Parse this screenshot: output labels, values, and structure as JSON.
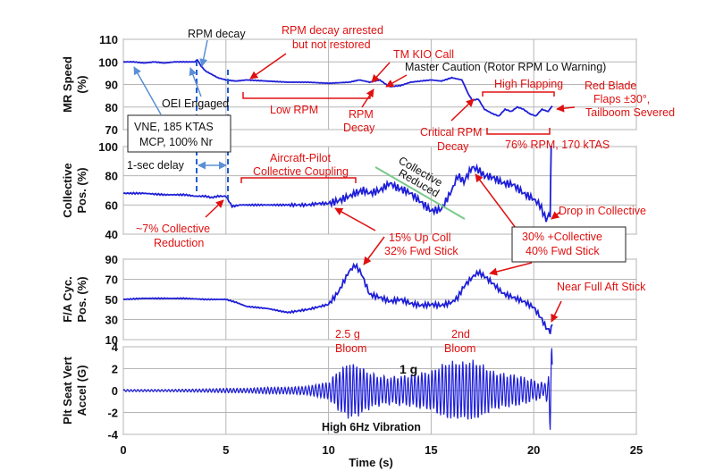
{
  "chart_data": {
    "type": "line",
    "xlabel": "Time (s)",
    "xlim": [
      0,
      25
    ],
    "xticks": [
      0,
      5,
      10,
      15,
      20,
      25
    ],
    "series_color": "#1f1fd8",
    "annotation_color": "#e01010",
    "subplots": [
      {
        "id": "mr",
        "ylabel": [
          "MR Speed",
          "(%)"
        ],
        "ylim": [
          70,
          110
        ],
        "yticks": [
          70,
          80,
          90,
          100,
          110
        ],
        "x": [
          0,
          0.5,
          1,
          1.5,
          2,
          2.5,
          3,
          3.5,
          3.6,
          3.8,
          4,
          4.2,
          4.4,
          4.6,
          5,
          5.5,
          6,
          7,
          8,
          9,
          10,
          11,
          11.5,
          12,
          12.5,
          12.8,
          13,
          13.5,
          14,
          15,
          15.5,
          16,
          16.5,
          16.8,
          17,
          17.3,
          17.6,
          18,
          18.3,
          18.6,
          18.9,
          19.2,
          19.5,
          19.8,
          20.1,
          20.4,
          20.7,
          20.9
        ],
        "y": [
          100,
          100,
          99.5,
          100,
          99.5,
          100,
          100,
          100,
          101,
          98,
          96,
          95,
          94,
          93,
          92,
          91.5,
          92,
          91.5,
          91,
          91,
          90.5,
          91,
          92,
          91,
          92,
          90,
          89,
          89.5,
          91,
          92,
          91.5,
          93,
          92,
          86,
          83,
          83.5,
          79,
          77,
          76,
          79,
          78,
          80,
          79,
          77,
          76,
          79,
          78,
          80.5
        ]
      },
      {
        "id": "coll",
        "ylabel": [
          "Collective",
          "Pos. (%)"
        ],
        "ylim": [
          40,
          100
        ],
        "yticks": [
          40,
          60,
          80,
          100
        ],
        "x": [
          0,
          1,
          2,
          3,
          3.5,
          4,
          4.3,
          4.6,
          5,
          5.3,
          5.7,
          6,
          7,
          8,
          9,
          9.5,
          10,
          10.5,
          11,
          11.3,
          11.7,
          12,
          12.5,
          13,
          13.3,
          13.7,
          14,
          14.5,
          15,
          15.5,
          16,
          16.3,
          16.6,
          17,
          17.3,
          17.6,
          18,
          18.5,
          19,
          19.5,
          20,
          20.3,
          20.6,
          20.8,
          20.85,
          20.9
        ],
        "y": [
          68,
          68,
          67,
          67,
          66,
          66,
          65,
          66,
          66,
          59,
          60,
          60,
          60,
          60,
          60,
          61,
          61,
          63,
          66,
          68,
          70,
          68,
          70,
          75,
          72,
          70,
          68,
          62,
          56,
          57,
          70,
          80,
          76,
          86,
          84,
          80,
          79,
          75,
          74,
          68,
          64,
          60,
          50,
          54,
          100,
          100
        ]
      },
      {
        "id": "cyc",
        "ylabel": [
          "F/A Cyc.",
          "Pos. (%)"
        ],
        "ylim": [
          10,
          90
        ],
        "yticks": [
          10,
          30,
          50,
          70,
          90
        ],
        "x": [
          0,
          1,
          2,
          3,
          4,
          5,
          5.5,
          6,
          7,
          7.5,
          8,
          9,
          10,
          10.5,
          11,
          11.3,
          11.6,
          12,
          12.5,
          13,
          13.5,
          14,
          14.5,
          15,
          15.5,
          16,
          16.3,
          16.6,
          17,
          17.3,
          17.6,
          18,
          18.5,
          19,
          19.5,
          20,
          20.4,
          20.6,
          20.8,
          20.9
        ],
        "y": [
          50,
          51,
          51,
          51,
          50,
          50,
          47,
          43,
          41,
          39,
          37,
          40,
          45,
          58,
          78,
          84,
          76,
          55,
          52,
          48,
          50,
          46,
          44,
          45,
          44,
          47,
          52,
          63,
          72,
          77,
          73,
          66,
          56,
          52,
          48,
          42,
          30,
          22,
          18,
          25
        ]
      },
      {
        "id": "accel",
        "ylabel": [
          "Plt Seat Vert",
          "Accel (G)"
        ],
        "ylim": [
          -4,
          4
        ],
        "yticks": [
          -4,
          -2,
          0,
          2,
          4
        ],
        "oscillation_hz": 6,
        "envelope": {
          "x": [
            0,
            2,
            4,
            5,
            6,
            7,
            8,
            9,
            10,
            10.5,
            11,
            11.5,
            12,
            12.5,
            13,
            13.5,
            14,
            14.5,
            15,
            15.5,
            16,
            16.5,
            17,
            17.5,
            18,
            18.5,
            19,
            19.5,
            20,
            20.5,
            20.7,
            20.8,
            20.9
          ],
          "amp": [
            0.1,
            0.1,
            0.15,
            0.2,
            0.2,
            0.3,
            0.3,
            0.4,
            0.8,
            1.8,
            2.5,
            2.2,
            1.6,
            1.3,
            1.2,
            1.3,
            1.4,
            1.6,
            1.7,
            2.3,
            2.6,
            2.5,
            2.7,
            2.3,
            1.7,
            1.5,
            1.4,
            1.2,
            0.9,
            0.6,
            1.0,
            3.8,
            3.8
          ]
        }
      }
    ]
  },
  "annotations": {
    "rpm_decay": "RPM decay",
    "rpm_arrested_1": "RPM decay arrested",
    "rpm_arrested_2": "but not restored",
    "tm_kio": "TM KIO Call",
    "master_caution": "Master Caution (Rotor RPM Lo Warning)",
    "oei": "OEI Engaged",
    "low_rpm": "Low RPM",
    "rpm_decay2_1": "RPM",
    "rpm_decay2_2": "Decay",
    "high_flapping": "High Flapping",
    "red_blade_1": "Red Blade",
    "red_blade_2": "Flaps ±30°,",
    "red_blade_3": "Tailboom Severed",
    "vne_1": "VNE, 185 KTAS",
    "vne_2": "MCP, 100% Nr",
    "critical_1": "Critical RPM",
    "critical_2": "Decay",
    "rpm76": "76% RPM, 170 kTAS",
    "one_sec": "1-sec delay",
    "coupling_1": "Aircraft-Pilot",
    "coupling_2": "Collective Coupling",
    "coll_reduced_1": "Collective",
    "coll_reduced_2": "Reduced",
    "drop_coll": "Drop in Collective",
    "coll_red_1": "~7% Collective",
    "coll_red_2": "Reduction",
    "up_coll_1": "15% Up Coll",
    "up_coll_2": "32% Fwd Stick",
    "plus_coll_1": "30%  +Collective",
    "plus_coll_2": "40% Fwd Stick",
    "full_aft": "Near Full Aft Stick",
    "bloom1_1": "2.5 g",
    "bloom1_2": "Bloom",
    "bloom2_1": "2nd",
    "bloom2_2": "Bloom",
    "one_g": "1 g",
    "high_6hz": "High 6Hz  Vibration"
  }
}
